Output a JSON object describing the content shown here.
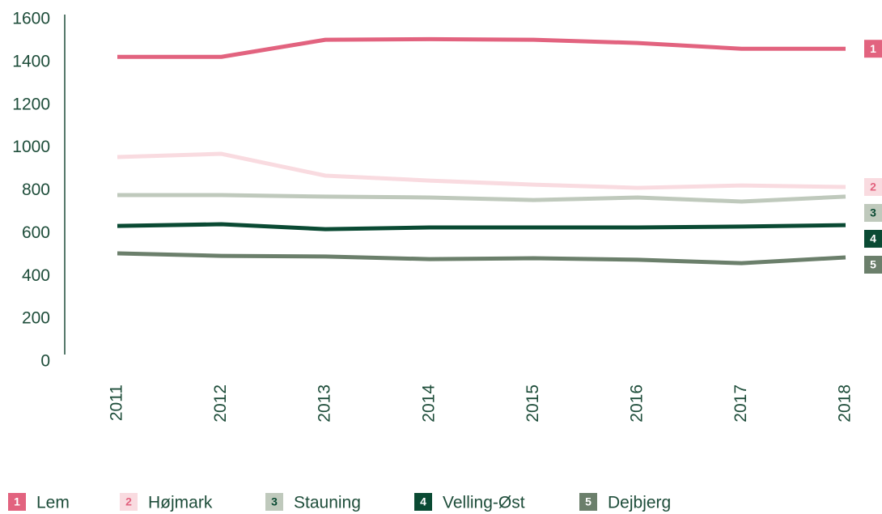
{
  "chart_data": {
    "type": "line",
    "categories": [
      "2011",
      "2012",
      "2013",
      "2014",
      "2015",
      "2016",
      "2017",
      "2018"
    ],
    "series": [
      {
        "name": "Lem",
        "key": "1",
        "color": "#e2637f",
        "key_color": "#ffffff",
        "values": [
          1425,
          1425,
          1505,
          1508,
          1505,
          1490,
          1463,
          1463
        ]
      },
      {
        "name": "Højmark",
        "key": "2",
        "color": "#f9dbe0",
        "key_color": "#e2637f",
        "values": [
          957,
          972,
          870,
          847,
          828,
          813,
          824,
          817
        ]
      },
      {
        "name": "Stauning",
        "key": "3",
        "color": "#bfc9bc",
        "key_color": "#0a4a33",
        "values": [
          779,
          779,
          772,
          768,
          756,
          768,
          749,
          772
        ]
      },
      {
        "name": "Velling-Øst",
        "key": "4",
        "color": "#0a4a33",
        "key_color": "#ffffff",
        "values": [
          635,
          643,
          620,
          628,
          628,
          628,
          632,
          639
        ]
      },
      {
        "name": "Dejbjerg",
        "key": "5",
        "color": "#6b7f6b",
        "key_color": "#ffffff",
        "values": [
          507,
          495,
          492,
          480,
          484,
          477,
          461,
          488
        ]
      }
    ],
    "ylim": [
      0,
      1600
    ],
    "yticks": [
      0,
      200,
      400,
      600,
      800,
      1000,
      1200,
      1400,
      1600
    ],
    "grid": false
  }
}
